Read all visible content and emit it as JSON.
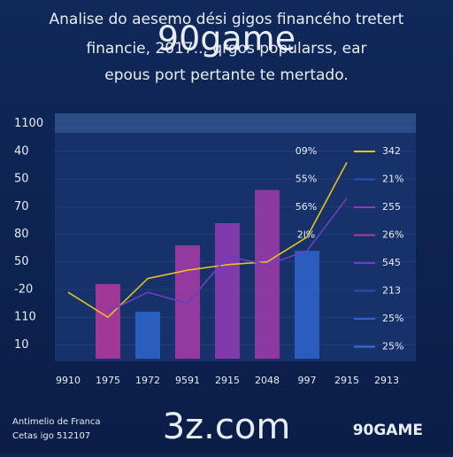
{
  "title_lines": [
    "Analise do aesemo dési gigos financého tretert",
    "financie, 2017... qrgos popularss, ear",
    "epous port pertante te mertado."
  ],
  "watermark": "90game",
  "chart_data": {
    "type": "bar",
    "categories": [
      "9910",
      "1975",
      "1972",
      "9591",
      "2915",
      "2048",
      "997",
      "2915",
      "2913"
    ],
    "values": [
      null,
      2.7,
      1.7,
      4.1,
      4.9,
      6.1,
      3.9,
      null,
      null
    ],
    "colors": [
      null,
      "#b0399c",
      "#2d62c8",
      "#a23aa6",
      "#8a3cb0",
      "#9a3aa8",
      "#2d62c8",
      null,
      null
    ],
    "lines": [
      {
        "color": "#e8c21e",
        "values": [
          2.4,
          1.5,
          2.9,
          3.2,
          3.4,
          3.5,
          4.4,
          7.1,
          null
        ]
      },
      {
        "color": "#6a3fc0",
        "values": [
          null,
          1.7,
          2.4,
          2.0,
          3.7,
          3.4,
          3.9,
          5.8,
          null
        ]
      }
    ],
    "ylim": [
      0,
      9
    ],
    "yticks": [
      {
        "value": 0.5,
        "label": "10"
      },
      {
        "value": 1.5,
        "label": "110"
      },
      {
        "value": 2.5,
        "label": "-20"
      },
      {
        "value": 3.5,
        "label": "50"
      },
      {
        "value": 4.5,
        "label": "80"
      },
      {
        "value": 5.5,
        "label": "70"
      },
      {
        "value": 6.5,
        "label": "50"
      },
      {
        "value": 7.5,
        "label": "40"
      },
      {
        "value": 8.5,
        "label": "1100"
      }
    ],
    "grid": true,
    "legend": {
      "left_labels": [
        "09%",
        "55%",
        "56%",
        "2l%"
      ],
      "items": [
        {
          "label": "342",
          "color": "#e8c21e"
        },
        {
          "label": "21%",
          "color": "#2d4fb8"
        },
        {
          "label": "255",
          "color": "#8a3cb0"
        },
        {
          "label": "26%",
          "color": "#b0399c"
        },
        {
          "label": "545",
          "color": "#6a3fc0"
        },
        {
          "label": "213",
          "color": "#2a48a8"
        },
        {
          "label": "25%",
          "color": "#2d62c8"
        },
        {
          "label": "25%",
          "color": "#3a70d8"
        }
      ]
    }
  },
  "footer": {
    "lines": [
      "Antimelio de Franca",
      "Cetas igo 512107"
    ],
    "site": "3z.com",
    "brand": "90GAME"
  }
}
